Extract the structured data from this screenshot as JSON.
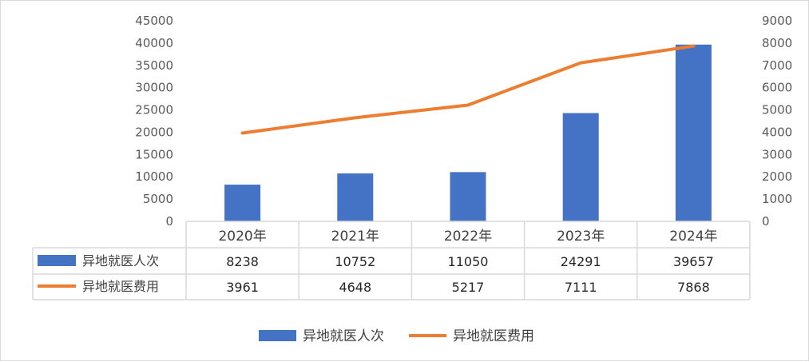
{
  "chart_data": {
    "type": "bar",
    "categories": [
      "2020年",
      "2021年",
      "2022年",
      "2023年",
      "2024年"
    ],
    "series": [
      {
        "name": "异地就医人次",
        "type": "bar",
        "axis": "left",
        "color": "#4472C4",
        "values": [
          8238,
          10752,
          11050,
          24291,
          39657
        ]
      },
      {
        "name": "异地就医费用",
        "type": "line",
        "axis": "right",
        "color": "#ED7D31",
        "values": [
          3961,
          4648,
          5217,
          7111,
          7868
        ]
      }
    ],
    "ylim_left": [
      0,
      45000
    ],
    "ylim_right": [
      0,
      9000
    ],
    "left_ticks": [
      0,
      5000,
      10000,
      15000,
      20000,
      25000,
      30000,
      35000,
      40000,
      45000
    ],
    "right_ticks": [
      0,
      1000,
      2000,
      3000,
      4000,
      5000,
      6000,
      7000,
      8000,
      9000
    ],
    "grid": false,
    "data_table": true,
    "legend": "bottom-center"
  }
}
